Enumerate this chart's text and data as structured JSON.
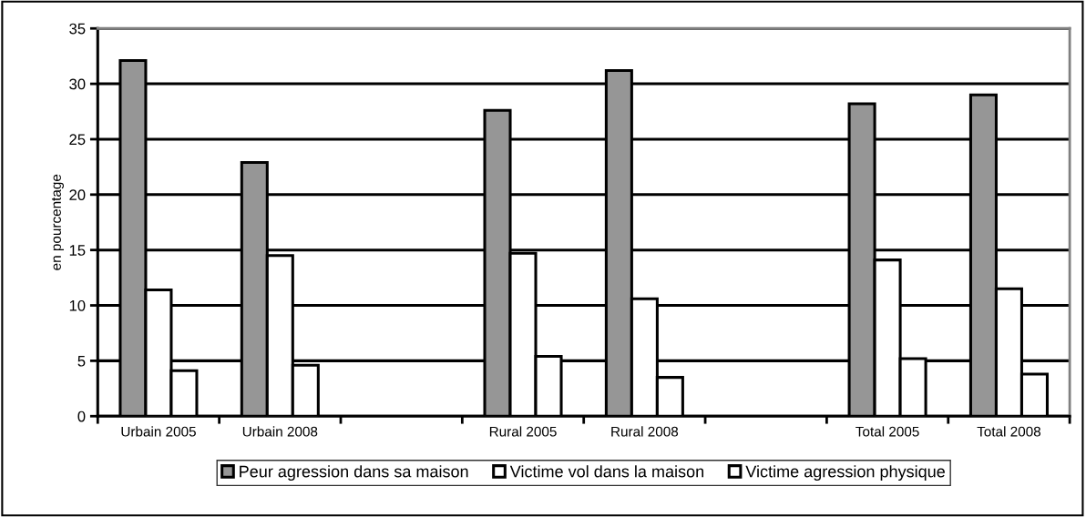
{
  "chart_data": {
    "type": "bar",
    "ylabel": "en pourcentage",
    "categories": [
      "Urbain 2005",
      "Urbain 2008",
      null,
      "Rural 2005",
      "Rural 2008",
      null,
      "Total 2005",
      "Total 2008"
    ],
    "series": [
      {
        "name": "Peur agression dans sa maison",
        "color": "#969696",
        "values": [
          32.1,
          22.9,
          null,
          27.6,
          31.2,
          null,
          28.2,
          29.0
        ]
      },
      {
        "name": "Victime vol dans la maison",
        "color": "#ffffff",
        "values": [
          11.4,
          14.5,
          null,
          14.7,
          10.6,
          null,
          14.1,
          11.5
        ]
      },
      {
        "name": "Victime agression physique",
        "color": "#ffffff",
        "values": [
          4.1,
          4.6,
          null,
          5.4,
          3.5,
          null,
          5.2,
          3.8
        ]
      }
    ],
    "ylim": [
      0,
      35
    ],
    "yticks": [
      0,
      5,
      10,
      15,
      20,
      25,
      30,
      35
    ],
    "grid": "y",
    "legend": "bottom"
  }
}
